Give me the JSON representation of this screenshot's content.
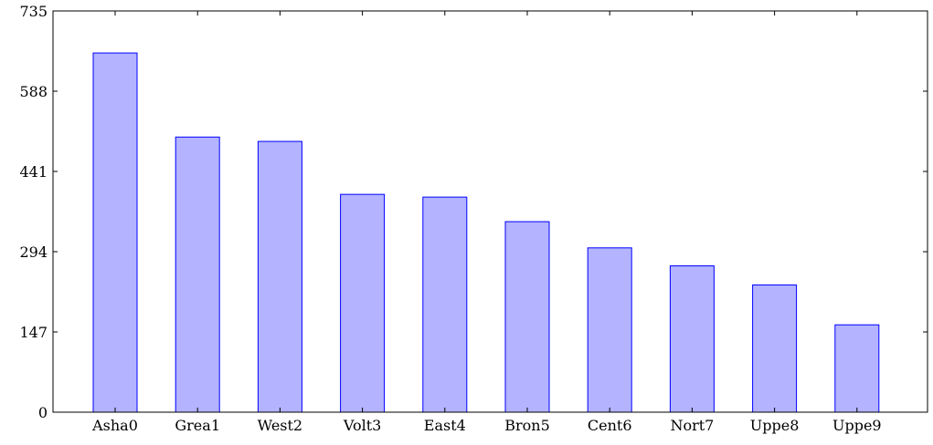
{
  "chart_data": {
    "type": "bar",
    "title": "",
    "xlabel": "",
    "ylabel": "",
    "categories": [
      "Asha0",
      "Grea1",
      "West2",
      "Volt3",
      "East4",
      "Bron5",
      "Cent6",
      "Nort7",
      "Uppe8",
      "Uppe9"
    ],
    "values": [
      658,
      504,
      496,
      399,
      394,
      349,
      301,
      268,
      233,
      160
    ],
    "ylim": [
      0,
      735
    ],
    "yticks": [
      0,
      147,
      294,
      441,
      588,
      735
    ],
    "ytick_labels": [
      "0",
      "147",
      "294",
      "441",
      "588",
      "735"
    ],
    "grid": false,
    "legend": "none",
    "colors": {
      "bar_fill": "#b3b3ff",
      "bar_stroke": "#0000ff",
      "axis": "#000000"
    }
  }
}
